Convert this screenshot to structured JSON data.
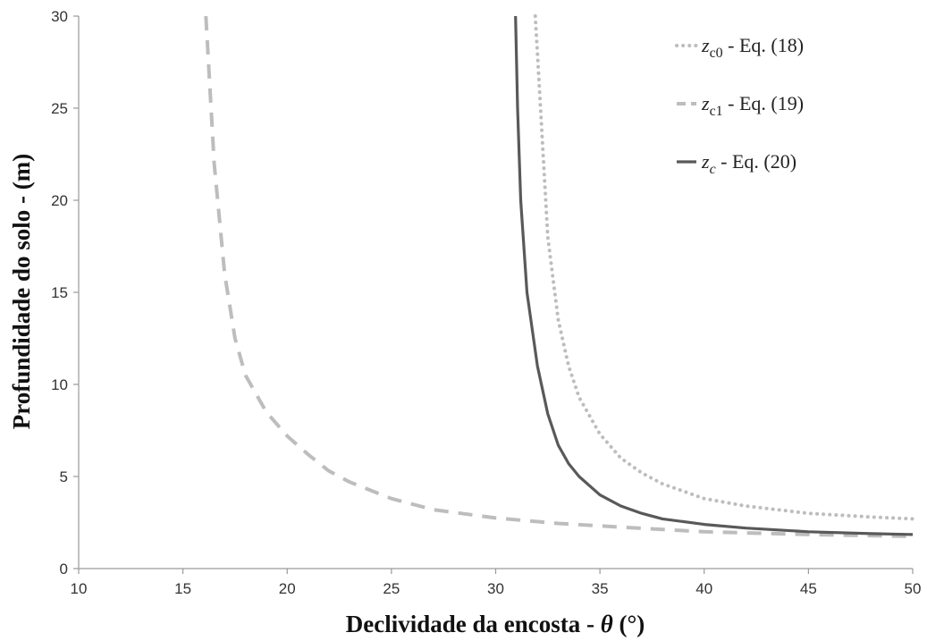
{
  "chart_data": {
    "type": "line",
    "xlabel_main": "Declividade da encosta - ",
    "xlabel_symbol": "θ",
    "xlabel_unit": " (°)",
    "ylabel": "Profundidade do solo  - (m)",
    "xlim": [
      10,
      50
    ],
    "ylim": [
      0,
      30
    ],
    "x_ticks": [
      "10",
      "15",
      "20",
      "25",
      "30",
      "35",
      "40",
      "45",
      "50"
    ],
    "y_ticks": [
      "0",
      "5",
      "10",
      "15",
      "20",
      "25",
      "30"
    ],
    "grid": false,
    "legend_position": "top-right",
    "series": [
      {
        "id": "zc0",
        "name": "z_c0 - Eq. (18)",
        "legend_symbol": "z",
        "legend_subscript": "c0",
        "legend_rest": " - Eq. (18)",
        "style": "dotted",
        "color": "#BDBDBD",
        "x": [
          31.9,
          32,
          32.5,
          33,
          33.5,
          34,
          35,
          36,
          37,
          38,
          40,
          42,
          45,
          48,
          50
        ],
        "y": [
          30,
          28,
          18,
          13.5,
          11,
          9.3,
          7.3,
          6,
          5.2,
          4.6,
          3.8,
          3.4,
          3.0,
          2.8,
          2.7
        ]
      },
      {
        "id": "zc1",
        "name": "z_c1 - Eq. (19)",
        "legend_symbol": "z",
        "legend_subscript": "c1",
        "legend_rest": " - Eq. (19)",
        "style": "dashed",
        "color": "#BDBDBD",
        "x": [
          16.1,
          16.5,
          17,
          17.5,
          18,
          19,
          20,
          21,
          22,
          23,
          25,
          27,
          30,
          33,
          36,
          40,
          45,
          50
        ],
        "y": [
          30,
          22,
          16,
          12.5,
          10.5,
          8.5,
          7.2,
          6.2,
          5.3,
          4.7,
          3.8,
          3.2,
          2.75,
          2.45,
          2.25,
          2.0,
          1.85,
          1.75
        ]
      },
      {
        "id": "zc",
        "name": "z_c - Eq. (20)",
        "legend_symbol": "z",
        "legend_subscript": "c",
        "legend_rest": " - Eq. (20)",
        "style": "solid",
        "color": "#595959",
        "x": [
          30.95,
          31.05,
          31.2,
          31.5,
          32,
          32.5,
          33,
          33.5,
          34,
          35,
          36,
          37,
          38,
          40,
          42,
          45,
          48,
          50
        ],
        "y": [
          30,
          25,
          20,
          15,
          11,
          8.4,
          6.7,
          5.7,
          5.0,
          4.0,
          3.4,
          3.0,
          2.7,
          2.4,
          2.2,
          2.0,
          1.9,
          1.85
        ]
      }
    ]
  }
}
